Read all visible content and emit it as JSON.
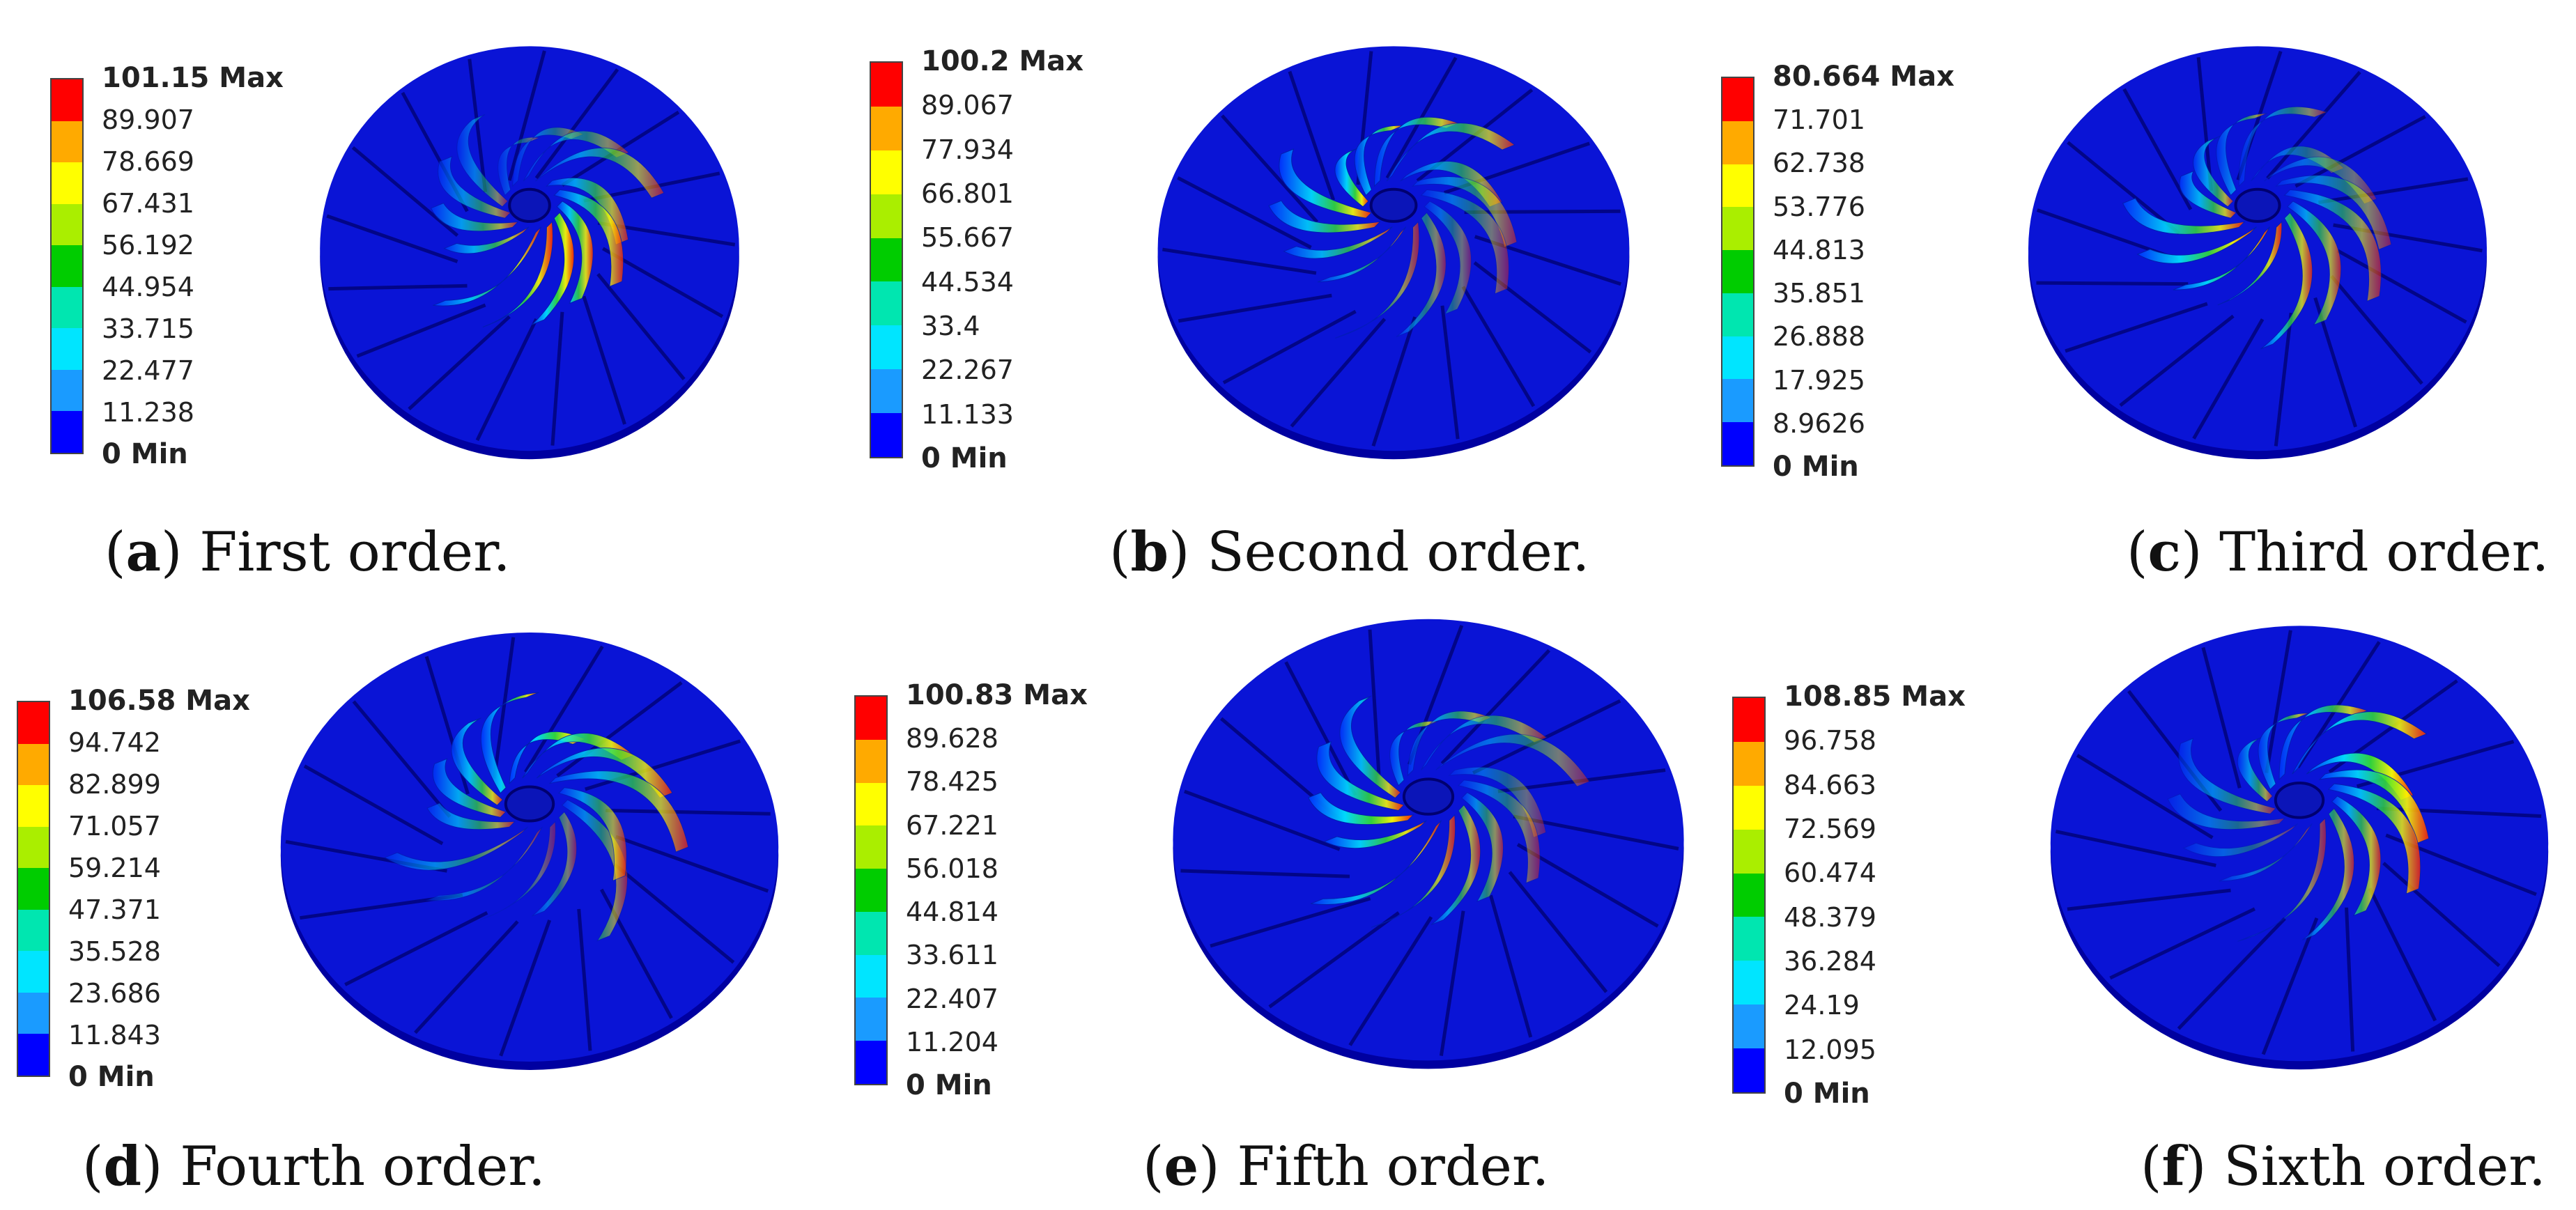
{
  "colors": {
    "scale": [
      "#0000ff",
      "#1a9bff",
      "#00e5ff",
      "#00e6b0",
      "#00cc00",
      "#aaee00",
      "#ffff00",
      "#ffaa00",
      "#ff0000"
    ],
    "disk": "#0a14d6",
    "disk_edge": "#0000a0",
    "hub": "#0b15b8"
  },
  "panels": [
    {
      "letter": "a",
      "caption": "First order.",
      "legend": {
        "max": "101.15 Max",
        "values": [
          "89.907",
          "78.669",
          "67.431",
          "56.192",
          "44.954",
          "33.715",
          "22.477",
          "11.238"
        ],
        "min": "0 Min"
      }
    },
    {
      "letter": "b",
      "caption": "Second order.",
      "legend": {
        "max": "100.2 Max",
        "values": [
          "89.067",
          "77.934",
          "66.801",
          "55.667",
          "44.534",
          "33.4",
          "22.267",
          "11.133"
        ],
        "min": "0 Min"
      }
    },
    {
      "letter": "c",
      "caption": "Third order.",
      "legend": {
        "max": "80.664 Max",
        "values": [
          "71.701",
          "62.738",
          "53.776",
          "44.813",
          "35.851",
          "26.888",
          "17.925",
          "8.9626"
        ],
        "min": "0 Min"
      }
    },
    {
      "letter": "d",
      "caption": "Fourth order.",
      "legend": {
        "max": "106.58 Max",
        "values": [
          "94.742",
          "82.899",
          "71.057",
          "59.214",
          "47.371",
          "35.528",
          "23.686",
          "11.843"
        ],
        "min": "0 Min"
      }
    },
    {
      "letter": "e",
      "caption": "Fifth order.",
      "legend": {
        "max": "100.83 Max",
        "values": [
          "89.628",
          "78.425",
          "67.221",
          "56.018",
          "44.814",
          "33.611",
          "22.407",
          "11.204"
        ],
        "min": "0 Min"
      }
    },
    {
      "letter": "f",
      "caption": "Sixth order.",
      "legend": {
        "max": "108.85 Max",
        "values": [
          "96.758",
          "84.663",
          "72.569",
          "60.474",
          "48.379",
          "36.284",
          "24.19",
          "12.095"
        ],
        "min": "0 Min"
      }
    }
  ]
}
